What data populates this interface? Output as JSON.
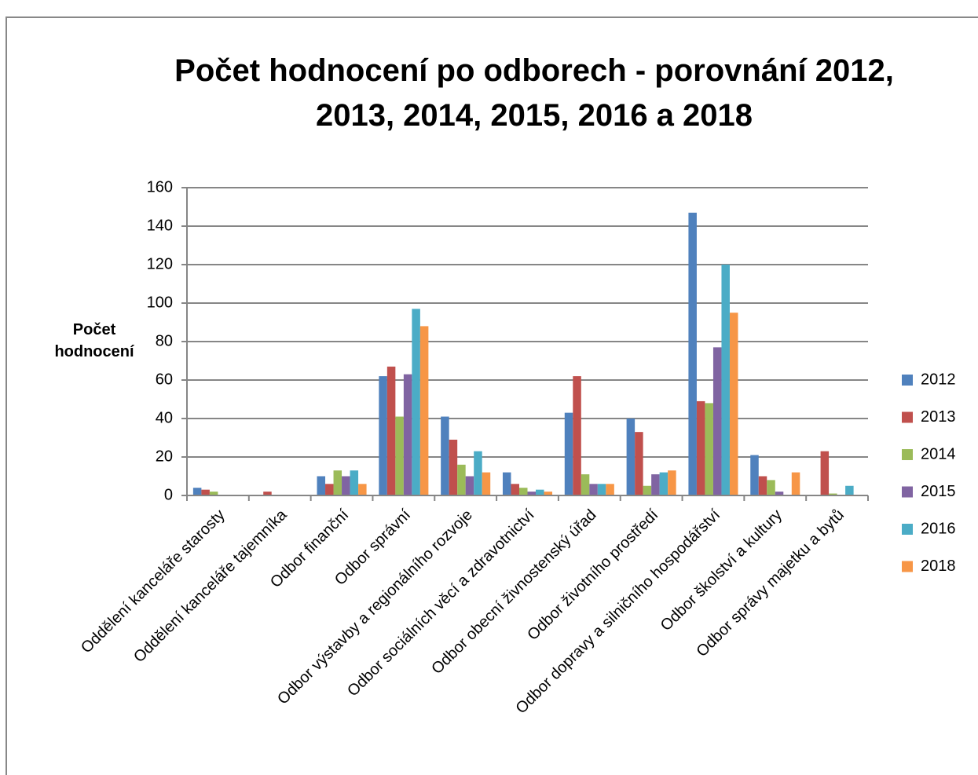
{
  "chart_data": {
    "type": "bar",
    "title": "Počet hodnocení po odborech - porovnání 2012, 2013, 2014, 2015, 2016 a 2018",
    "y_label": "Počet hodnocení",
    "categories": [
      "Oddělení kanceláře starosty",
      "Oddělení kanceláře tajemníka",
      "Odbor finanční",
      "Odbor správní",
      "Odbor výstavby a regionálního rozvoje",
      "Odbor sociálních věcí a zdravotnictví",
      "Odbor obecní živnostenský úřad",
      "Odbor životního prostředí",
      "Odbor dopravy a silničního hospodářství",
      "Odbor školství a kultury",
      "Odbor správy majetku a bytů"
    ],
    "series": [
      {
        "name": "2012",
        "color": "#4f81bd",
        "values": [
          4,
          0,
          10,
          62,
          41,
          12,
          43,
          40,
          147,
          21,
          0
        ]
      },
      {
        "name": "2013",
        "color": "#c0504d",
        "values": [
          3,
          2,
          6,
          67,
          29,
          6,
          62,
          33,
          49,
          10,
          23
        ]
      },
      {
        "name": "2014",
        "color": "#9bbb59",
        "values": [
          2,
          0,
          13,
          41,
          16,
          4,
          11,
          5,
          48,
          8,
          1
        ]
      },
      {
        "name": "2015",
        "color": "#8064a2",
        "values": [
          0,
          0,
          10,
          63,
          10,
          2,
          6,
          11,
          77,
          2,
          0
        ]
      },
      {
        "name": "2016",
        "color": "#4bacc6",
        "values": [
          0,
          0,
          13,
          97,
          23,
          3,
          6,
          12,
          120,
          0,
          5
        ]
      },
      {
        "name": "2018",
        "color": "#f79646",
        "values": [
          0,
          0,
          6,
          88,
          12,
          2,
          6,
          13,
          95,
          12,
          0
        ]
      }
    ],
    "ylim": [
      0,
      160
    ],
    "yticks": [
      0,
      20,
      40,
      60,
      80,
      100,
      120,
      140,
      160
    ],
    "grid": true,
    "legend": "right"
  }
}
